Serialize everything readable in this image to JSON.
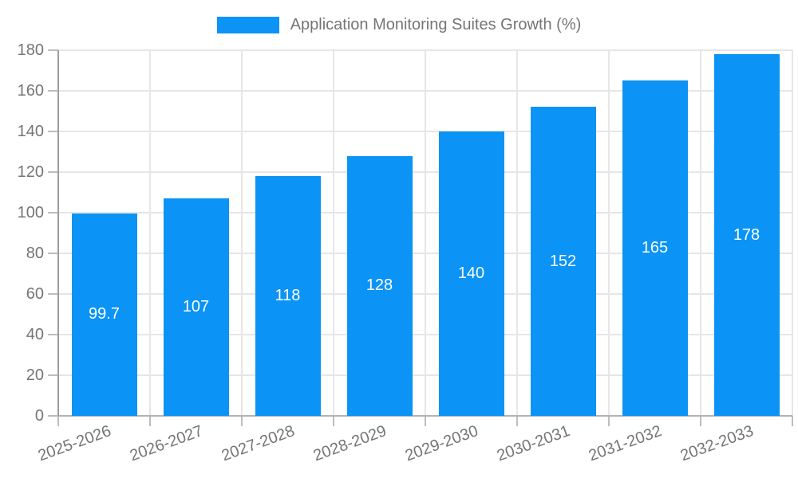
{
  "legend": {
    "swatch_color": "#0b93f5"
  },
  "chart_data": {
    "type": "bar",
    "title": "Application Monitoring Suites Growth (%)",
    "categories": [
      "2025-2026",
      "2026-2027",
      "2027-2028",
      "2028-2029",
      "2029-2030",
      "2030-2031",
      "2031-2032",
      "2032-2033"
    ],
    "values": [
      99.7,
      107,
      118,
      128,
      140,
      152,
      165,
      178
    ],
    "bar_labels": [
      "99.7",
      "107",
      "118",
      "128",
      "140",
      "152",
      "165",
      "178"
    ],
    "xlabel": "",
    "ylabel": "",
    "ylim": [
      0,
      180
    ],
    "yticks": [
      0,
      20,
      40,
      60,
      80,
      100,
      120,
      140,
      160,
      180
    ],
    "grid": true,
    "legend_position": "top-center",
    "bar_label_position": "inside-center",
    "x_tick_rotation_deg": -20,
    "colors": {
      "bar": "#0b93f5",
      "bar_label": "#ffffff",
      "gridline": "#e6e6e6",
      "x_axis": "#b3b3b3",
      "y_axis": "#9e9e9e",
      "tick": "#bdbdbd",
      "text": "#757575"
    }
  }
}
